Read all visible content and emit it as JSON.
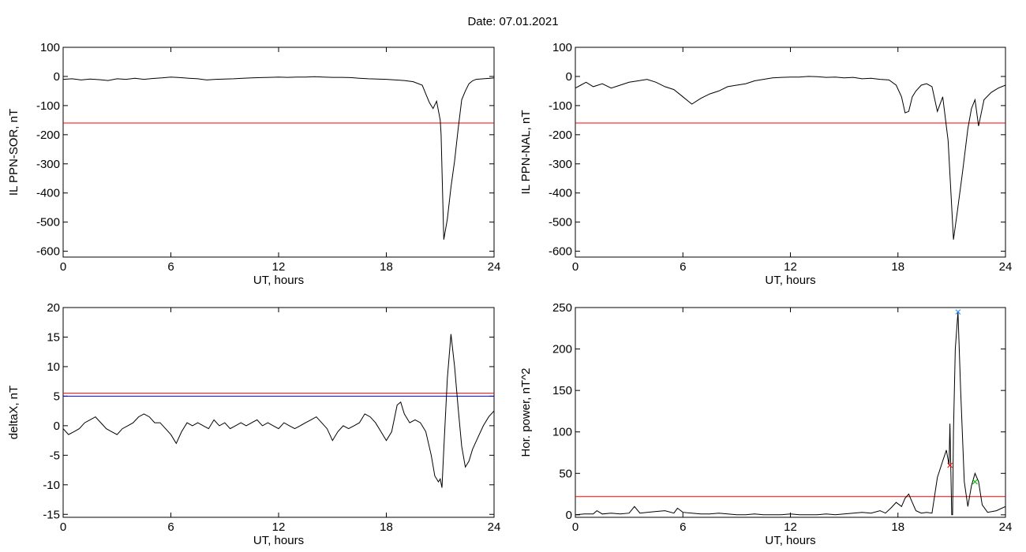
{
  "header": {
    "title": "Date:  07.01.2021"
  },
  "chart_data": [
    {
      "type": "line",
      "ylabel": "IL PPN-SOR, nT",
      "xlabel": "UT, hours",
      "xlim": [
        0,
        24
      ],
      "ylim": [
        -620,
        100
      ],
      "xticks": [
        0,
        6,
        12,
        18,
        24
      ],
      "yticks": [
        100,
        0,
        -100,
        -200,
        -300,
        -400,
        -500,
        -600
      ],
      "threshold": {
        "value": -160,
        "color": "#ff0000"
      },
      "series": [
        {
          "color": "#000000",
          "x": [
            0,
            0.5,
            1,
            1.5,
            2,
            2.5,
            3,
            3.5,
            4,
            4.5,
            5,
            5.5,
            6,
            6.5,
            7,
            7.5,
            8,
            8.5,
            9,
            9.5,
            10,
            10.5,
            11,
            11.5,
            12,
            12.5,
            13,
            13.5,
            14,
            14.5,
            15,
            15.5,
            16,
            16.5,
            17,
            17.5,
            18,
            18.5,
            19,
            19.5,
            20,
            20.2,
            20.4,
            20.6,
            20.8,
            21.0,
            21.05,
            21.2,
            21.4,
            21.6,
            21.8,
            22.0,
            22.2,
            22.4,
            22.6,
            22.8,
            23.0,
            23.4,
            23.8,
            24
          ],
          "y": [
            -10,
            -8,
            -12,
            -9,
            -11,
            -14,
            -8,
            -10,
            -6,
            -10,
            -7,
            -5,
            -2,
            -4,
            -6,
            -8,
            -12,
            -10,
            -9,
            -8,
            -6,
            -5,
            -4,
            -3,
            -2,
            -3,
            -2,
            -2,
            -1,
            -2,
            -3,
            -3,
            -4,
            -6,
            -8,
            -9,
            -10,
            -12,
            -14,
            -18,
            -30,
            -60,
            -90,
            -110,
            -85,
            -150,
            -200,
            -560,
            -490,
            -380,
            -290,
            -180,
            -80,
            -50,
            -25,
            -15,
            -10,
            -8,
            -6,
            -5
          ]
        }
      ]
    },
    {
      "type": "line",
      "ylabel": "IL PPN-NAL, nT",
      "xlabel": "UT, hours",
      "xlim": [
        0,
        24
      ],
      "ylim": [
        -620,
        100
      ],
      "xticks": [
        0,
        6,
        12,
        18,
        24
      ],
      "yticks": [
        100,
        0,
        -100,
        -200,
        -300,
        -400,
        -500,
        -600
      ],
      "threshold": {
        "value": -160,
        "color": "#ff0000"
      },
      "series": [
        {
          "color": "#000000",
          "x": [
            0,
            0.3,
            0.6,
            1,
            1.5,
            2,
            2.5,
            3,
            3.5,
            4,
            4.5,
            5,
            5.5,
            6,
            6.5,
            7,
            7.5,
            8,
            8.5,
            9,
            9.5,
            10,
            10.5,
            11,
            11.5,
            12,
            12.5,
            13,
            13.5,
            14,
            14.5,
            15,
            15.5,
            16,
            16.5,
            17,
            17.5,
            17.9,
            18.2,
            18.4,
            18.6,
            18.8,
            19.0,
            19.3,
            19.6,
            19.9,
            20.2,
            20.5,
            20.8,
            21.1,
            21.3,
            21.6,
            21.9,
            22.1,
            22.3,
            22.5,
            22.8,
            23.2,
            23.6,
            24
          ],
          "y": [
            -40,
            -30,
            -20,
            -35,
            -25,
            -40,
            -30,
            -20,
            -15,
            -10,
            -20,
            -35,
            -45,
            -70,
            -95,
            -75,
            -60,
            -50,
            -35,
            -30,
            -25,
            -15,
            -10,
            -5,
            -3,
            -2,
            -2,
            0,
            -1,
            -3,
            -2,
            -5,
            -3,
            -8,
            -6,
            -10,
            -12,
            -30,
            -70,
            -125,
            -120,
            -70,
            -50,
            -30,
            -25,
            -35,
            -120,
            -70,
            -220,
            -560,
            -470,
            -330,
            -180,
            -110,
            -80,
            -170,
            -80,
            -55,
            -40,
            -30
          ]
        }
      ]
    },
    {
      "type": "line",
      "ylabel": "deltaX, nT",
      "xlabel": "UT, hours",
      "xlim": [
        0,
        24
      ],
      "ylim": [
        -15.5,
        20
      ],
      "xticks": [
        0,
        6,
        12,
        18,
        24
      ],
      "yticks": [
        20,
        15,
        10,
        5,
        0,
        -5,
        -10,
        -15
      ],
      "threshold": {
        "value": 5.5,
        "color": "#ff0000"
      },
      "threshold2": {
        "value": 5,
        "color": "#0000ff"
      },
      "series": [
        {
          "color": "#000000",
          "x": [
            0,
            0.3,
            0.6,
            0.9,
            1.2,
            1.5,
            1.8,
            2.1,
            2.4,
            2.7,
            3.0,
            3.3,
            3.6,
            3.9,
            4.2,
            4.5,
            4.8,
            5.1,
            5.4,
            5.7,
            6.0,
            6.3,
            6.6,
            6.9,
            7.2,
            7.5,
            7.8,
            8.1,
            8.4,
            8.7,
            9.0,
            9.3,
            9.6,
            9.9,
            10.2,
            10.5,
            10.8,
            11.1,
            11.4,
            11.7,
            12.0,
            12.3,
            12.6,
            12.9,
            13.2,
            13.5,
            13.8,
            14.1,
            14.4,
            14.7,
            15.0,
            15.3,
            15.6,
            15.9,
            16.2,
            16.5,
            16.8,
            17.1,
            17.4,
            17.7,
            18.0,
            18.3,
            18.6,
            18.8,
            19.0,
            19.3,
            19.6,
            19.9,
            20.2,
            20.5,
            20.7,
            20.9,
            21.0,
            21.1,
            21.2,
            21.4,
            21.6,
            21.8,
            22.0,
            22.2,
            22.4,
            22.6,
            22.8,
            23.1,
            23.4,
            23.7,
            24
          ],
          "y": [
            -0.5,
            -1.5,
            -1,
            -0.5,
            0.5,
            1,
            1.5,
            0.5,
            -0.5,
            -1,
            -1.5,
            -0.5,
            0,
            0.5,
            1.5,
            2,
            1.5,
            0.5,
            0.5,
            -0.5,
            -1.5,
            -3,
            -1,
            0.5,
            0,
            0.5,
            0,
            -0.5,
            1,
            0,
            0.5,
            -0.5,
            0,
            0.5,
            0,
            0.5,
            1,
            0,
            0.5,
            0,
            -0.5,
            0.5,
            0,
            -0.5,
            0,
            0.5,
            1,
            1.5,
            0.5,
            -0.5,
            -2.5,
            -1,
            0,
            -0.5,
            0,
            0.5,
            2,
            1.5,
            0.5,
            -1,
            -2.5,
            -1,
            3.5,
            4,
            2,
            0.5,
            1,
            0.5,
            -1,
            -5,
            -8.5,
            -9.5,
            -9,
            -10.5,
            -4,
            8,
            15.5,
            10,
            3,
            -3.5,
            -7,
            -6,
            -4,
            -2,
            0,
            1.5,
            2.5
          ]
        }
      ]
    },
    {
      "type": "line",
      "ylabel": "Hor. power, nT^2",
      "xlabel": "UT, hours",
      "xlim": [
        0,
        24
      ],
      "ylim": [
        -3,
        250
      ],
      "xticks": [
        0,
        6,
        12,
        18,
        24
      ],
      "yticks": [
        250,
        200,
        150,
        100,
        50,
        0
      ],
      "threshold": {
        "value": 22,
        "color": "#ff0000"
      },
      "markers": [
        {
          "x": 20.9,
          "y": 60,
          "color": "#ff0000",
          "symbol": "×"
        },
        {
          "x": 21.35,
          "y": 245,
          "color": "#1e90ff",
          "symbol": "×"
        },
        {
          "x": 22.3,
          "y": 40,
          "color": "#00c000",
          "symbol": "×"
        }
      ],
      "series": [
        {
          "color": "#000000",
          "x": [
            0,
            0.5,
            1,
            1.2,
            1.5,
            2,
            2.5,
            3,
            3.3,
            3.6,
            4,
            4.5,
            5,
            5.5,
            5.7,
            6,
            6.5,
            7,
            7.5,
            8,
            8.5,
            9,
            9.5,
            10,
            10.5,
            11,
            11.5,
            12,
            12.5,
            13,
            13.5,
            14,
            14.5,
            15,
            15.5,
            16,
            16.5,
            17,
            17.3,
            17.6,
            17.9,
            18.2,
            18.4,
            18.6,
            18.8,
            19.0,
            19.3,
            19.6,
            19.9,
            20.2,
            20.5,
            20.7,
            20.85,
            20.9,
            21.0,
            21.05,
            21.1,
            21.2,
            21.35,
            21.5,
            21.7,
            21.9,
            22.1,
            22.3,
            22.5,
            22.7,
            23,
            23.5,
            24
          ],
          "y": [
            0,
            1,
            1,
            5,
            1,
            2,
            1,
            2,
            10,
            2,
            3,
            4,
            5,
            2,
            8,
            3,
            2,
            1,
            1,
            2,
            1,
            0,
            0,
            1,
            0,
            0,
            0,
            1,
            0,
            0,
            0,
            1,
            0,
            1,
            2,
            3,
            2,
            5,
            2,
            8,
            15,
            10,
            20,
            25,
            15,
            5,
            2,
            3,
            2,
            45,
            65,
            78,
            60,
            110,
            0,
            0,
            100,
            200,
            245,
            150,
            40,
            10,
            35,
            50,
            40,
            12,
            3,
            5,
            10
          ]
        }
      ]
    }
  ]
}
